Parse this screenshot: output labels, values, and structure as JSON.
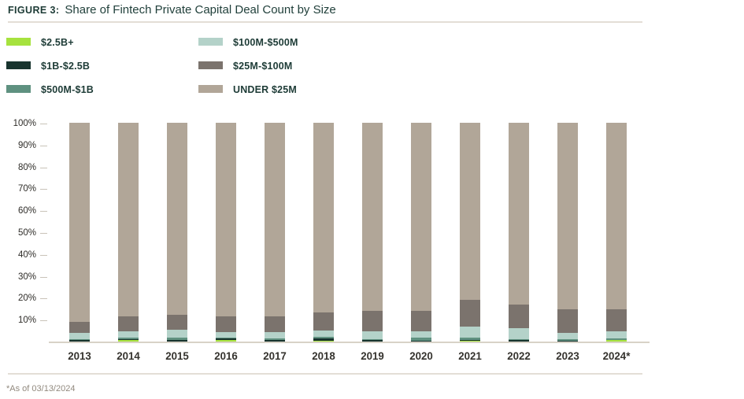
{
  "figure": {
    "label": "FIGURE 3:",
    "title": "Share of Fintech Private Capital Deal Count by Size"
  },
  "footnote": "*As of 03/13/2024",
  "colors": {
    "title_text": "#1d3b36",
    "legend_text": "#1d3b36",
    "axis_text": "#2e2c28",
    "year_text": "#35332e",
    "rule": "#e3ded6",
    "baseline": "#d8d2c7",
    "tick": "#c9c3b8",
    "footnote_text": "#91897e"
  },
  "chart_data": {
    "type": "bar",
    "stacked": true,
    "title": "Share of Fintech Private Capital Deal Count by Size",
    "xlabel": "",
    "ylabel": "",
    "ylim": [
      0,
      100
    ],
    "grid": false,
    "legend_position": "top-left-two-columns",
    "ytick_labels": [
      "100%",
      "90%",
      "80%",
      "70%",
      "60%",
      "50%",
      "40%",
      "30%",
      "20%",
      "10%"
    ],
    "categories": [
      "2013",
      "2014",
      "2015",
      "2016",
      "2017",
      "2018",
      "2019",
      "2020",
      "2021",
      "2022",
      "2023",
      "2024*"
    ],
    "series": [
      {
        "name": "$2.5B+",
        "color": "#a6e23e",
        "values": [
          0.0,
          0.6,
          0.0,
          0.8,
          0.0,
          0.3,
          0.0,
          0.0,
          0.5,
          0.0,
          0.0,
          0.7
        ]
      },
      {
        "name": "$1B-$2.5B",
        "color": "#18342e",
        "values": [
          0.7,
          0.5,
          0.8,
          0.5,
          0.7,
          1.0,
          0.6,
          0.2,
          0.2,
          0.6,
          0.4,
          0.2
        ]
      },
      {
        "name": "$500M-$1B",
        "color": "#5f9180",
        "values": [
          0.5,
          0.8,
          0.9,
          0.4,
          0.6,
          1.0,
          0.6,
          1.6,
          1.0,
          0.4,
          0.8,
          0.4
        ]
      },
      {
        "name": "$100M-$500M",
        "color": "#b4d2c9",
        "values": [
          2.6,
          2.9,
          3.6,
          2.8,
          3.1,
          2.7,
          3.6,
          2.9,
          5.3,
          5.0,
          2.8,
          3.3
        ]
      },
      {
        "name": "$25M-$100M",
        "color": "#7b736d",
        "values": [
          5.2,
          6.8,
          6.8,
          7.2,
          7.2,
          8.4,
          9.4,
          9.2,
          12.0,
          10.8,
          10.8,
          10.2
        ]
      },
      {
        "name": "UNDER $25M",
        "color": "#b1a698",
        "values": [
          91.0,
          88.4,
          87.9,
          88.3,
          88.4,
          86.6,
          85.8,
          86.1,
          81.0,
          83.2,
          85.2,
          85.2
        ]
      }
    ]
  }
}
